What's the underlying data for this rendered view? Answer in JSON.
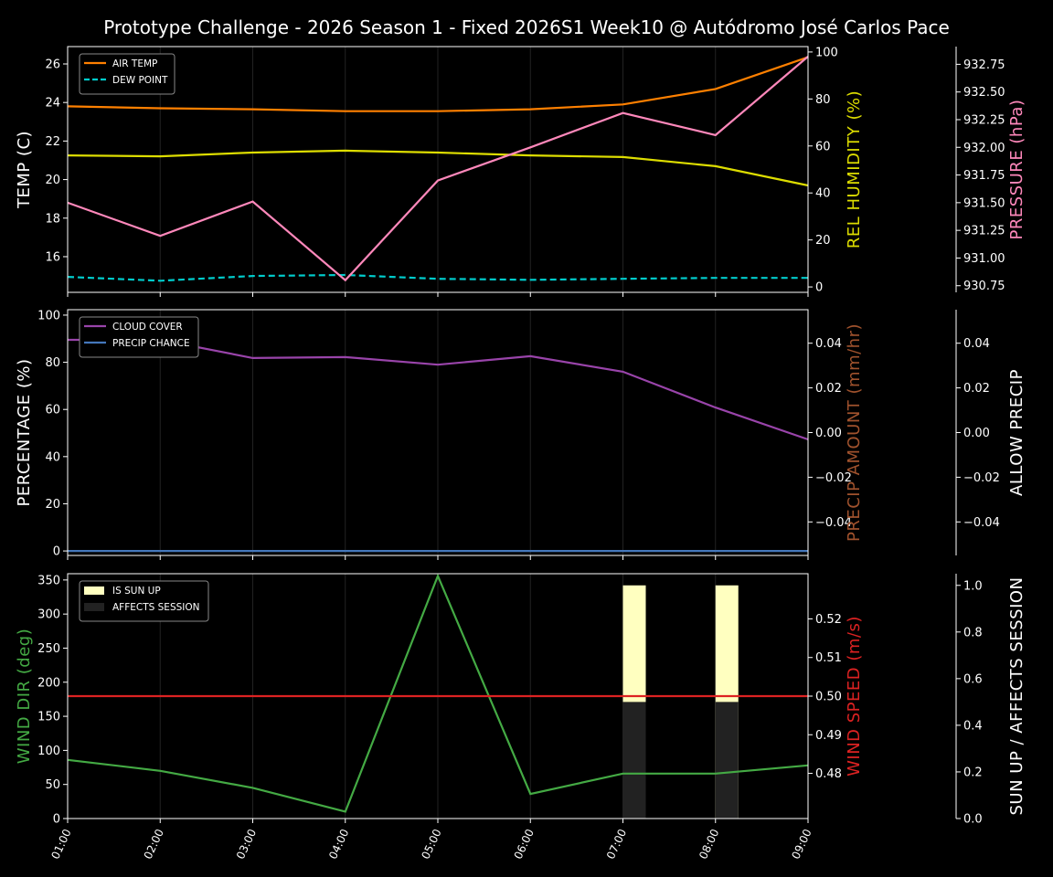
{
  "title": "Prototype Challenge  - 2026 Season 1 - Fixed 2026S1 Week10 @ Autódromo José Carlos Pace",
  "x_labels": [
    "01:00",
    "02:00",
    "03:00",
    "04:00",
    "05:00",
    "06:00",
    "07:00",
    "08:00",
    "09:00"
  ],
  "chart_data": [
    {
      "type": "line",
      "left_axis": {
        "label": "TEMP (C)",
        "color": "#ffffff",
        "ylim": [
          14.15,
          26.9
        ],
        "ticks": [
          16,
          18,
          20,
          22,
          24,
          26
        ],
        "tick_labels": [
          "16",
          "18",
          "20",
          "22",
          "24",
          "26"
        ]
      },
      "right_axis": {
        "label": "REL HUMIDITY (%)",
        "color": "#dddd00",
        "ylim": [
          -2.3,
          102.3
        ],
        "ticks": [
          0,
          20,
          40,
          60,
          80,
          100
        ],
        "tick_labels": [
          "0",
          "20",
          "40",
          "60",
          "80",
          "100"
        ]
      },
      "right_axis2": {
        "label": "PRESSURE (hPa)",
        "color": "#ff88bb",
        "ylim": [
          930.69,
          932.91
        ],
        "ticks": [
          930.75,
          931,
          931.25,
          931.5,
          931.75,
          932,
          932.25,
          932.5,
          932.75
        ],
        "tick_labels": [
          "930.75",
          "931.00",
          "931.25",
          "931.50",
          "931.75",
          "932.00",
          "932.25",
          "932.50",
          "932.75"
        ]
      },
      "legend": {
        "placement": "top-left",
        "entries": [
          "AIR TEMP",
          "DEW POINT"
        ]
      },
      "series": [
        {
          "name": "AIR TEMP",
          "axis": "left",
          "color": "#ff8000",
          "dash": false,
          "values": [
            23.8,
            23.7,
            23.65,
            23.55,
            23.55,
            23.65,
            23.9,
            24.7,
            26.35
          ]
        },
        {
          "name": "DEW POINT",
          "axis": "left",
          "color": "#00cccc",
          "dash": true,
          "values": [
            14.95,
            14.75,
            15.0,
            15.05,
            14.85,
            14.8,
            14.85,
            14.9,
            14.9
          ]
        },
        {
          "axis": "right",
          "color": "#dddd00",
          "dash": false,
          "values": [
            56,
            55.6,
            57.2,
            58,
            57.2,
            56,
            55.3,
            51.4,
            43.2
          ]
        },
        {
          "axis": "right2",
          "color": "#ff88bb",
          "dash": false,
          "values": [
            931.5,
            931.2,
            931.51,
            930.8,
            931.7,
            932.0,
            932.31,
            932.11,
            932.82
          ]
        }
      ]
    },
    {
      "type": "line",
      "left_axis": {
        "label": "PERCENTAGE (%)",
        "color": "#ffffff",
        "ylim": [
          -1.9,
          102.3
        ],
        "ticks": [
          0,
          20,
          40,
          60,
          80,
          100
        ],
        "tick_labels": [
          "0",
          "20",
          "40",
          "60",
          "80",
          "100"
        ]
      },
      "right_axis": {
        "label": "PRECIP AMOUNT (mm/hr)",
        "color": "#a0522d",
        "ylim": [
          -0.055,
          0.055
        ],
        "ticks": [
          -0.04,
          -0.02,
          0,
          0.02,
          0.04
        ],
        "tick_labels": [
          "−0.04",
          "−0.02",
          "0.00",
          "0.02",
          "0.04"
        ]
      },
      "right_axis2": {
        "label": "ALLOW PRECIP",
        "color": "#ffffff",
        "ylim": [
          -0.055,
          0.055
        ],
        "ticks": [
          -0.04,
          -0.02,
          0,
          0.02,
          0.04
        ],
        "tick_labels": [
          "−0.04",
          "−0.02",
          "0.00",
          "0.02",
          "0.04"
        ]
      },
      "legend": {
        "placement": "top-left",
        "entries": [
          "CLOUD COVER",
          "PRECIP CHANCE"
        ]
      },
      "series": [
        {
          "name": "CLOUD COVER",
          "axis": "left",
          "color": "#9944aa",
          "dash": false,
          "values": [
            89.5,
            89.5,
            81.8,
            82.2,
            79,
            82.6,
            76,
            60.8,
            47.3
          ]
        },
        {
          "name": "PRECIP CHANCE",
          "axis": "left",
          "color": "#4477bb",
          "dash": false,
          "values": [
            0,
            0,
            0,
            0,
            0,
            0,
            0,
            0,
            0
          ]
        }
      ]
    },
    {
      "type": "line",
      "left_axis": {
        "label": "WIND DIR (deg)",
        "color": "#44aa44",
        "ylim": [
          0,
          359.2
        ],
        "ticks": [
          0,
          50,
          100,
          150,
          200,
          250,
          300,
          350
        ],
        "tick_labels": [
          "0",
          "50",
          "100",
          "150",
          "200",
          "250",
          "300",
          "350"
        ]
      },
      "right_axis": {
        "label": "WIND SPEED (m/s)",
        "color": "#dd2222",
        "ylim": [
          0.4683,
          0.5317
        ],
        "ticks": [
          0.48,
          0.49,
          0.5,
          0.51,
          0.52
        ],
        "tick_labels": [
          "0.48",
          "0.49",
          "0.50",
          "0.51",
          "0.52"
        ]
      },
      "right_axis2": {
        "label": "SUN UP / AFFECTS SESSION",
        "color": "#ffffff",
        "ylim": [
          0,
          1.05
        ],
        "ticks": [
          0,
          0.2,
          0.4,
          0.6,
          0.8,
          1.0
        ],
        "tick_labels": [
          "0.0",
          "0.2",
          "0.4",
          "0.6",
          "0.8",
          "1.0"
        ]
      },
      "legend": {
        "placement": "top-left",
        "entries": [
          "IS SUN UP",
          "AFFECTS SESSION"
        ]
      },
      "bars": [
        {
          "name": "IS SUN UP",
          "axis": "right2",
          "color": "#ffffc0",
          "values": [
            0,
            0,
            0,
            0,
            0,
            0,
            1,
            1,
            0
          ]
        },
        {
          "name": "AFFECTS SESSION",
          "axis": "right2",
          "color": "#222222",
          "values": [
            0,
            0,
            0,
            0,
            0,
            0,
            0.5,
            0.5,
            0
          ]
        }
      ],
      "series": [
        {
          "axis": "left",
          "color": "#44aa44",
          "dash": false,
          "values": [
            86,
            70,
            45,
            10,
            356,
            36,
            66,
            66,
            78
          ]
        },
        {
          "axis": "right",
          "color": "#dd2222",
          "dash": false,
          "values": [
            0.5,
            0.5,
            0.5,
            0.5,
            0.5,
            0.5,
            0.5,
            0.5,
            0.5
          ]
        }
      ]
    }
  ]
}
